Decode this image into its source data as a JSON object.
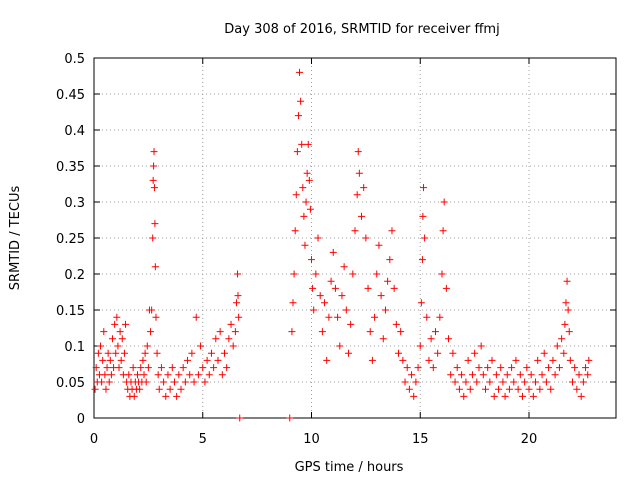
{
  "chart_data": {
    "type": "scatter",
    "title": "Day 308 of 2016, SRMTID for receiver ffmj",
    "xlabel": "GPS time / hours",
    "ylabel": "SRMTID / TECUs",
    "xlim": [
      0,
      24
    ],
    "ylim": [
      0,
      0.5
    ],
    "x_ticks": [
      "0",
      "5",
      "10",
      "15",
      "20"
    ],
    "y_ticks": [
      "0",
      "0.05",
      "0.1",
      "0.15",
      "0.2",
      "0.25",
      "0.3",
      "0.35",
      "0.4",
      "0.45",
      "0.5"
    ],
    "grid": true,
    "marker": "+",
    "color": "#ff0000",
    "series": [
      {
        "points": [
          [
            0.05,
            0.04
          ],
          [
            0.1,
            0.07
          ],
          [
            0.15,
            0.05
          ],
          [
            0.2,
            0.09
          ],
          [
            0.25,
            0.06
          ],
          [
            0.3,
            0.1
          ],
          [
            0.35,
            0.05
          ],
          [
            0.4,
            0.08
          ],
          [
            0.45,
            0.12
          ],
          [
            0.5,
            0.06
          ],
          [
            0.55,
            0.04
          ],
          [
            0.6,
            0.07
          ],
          [
            0.65,
            0.09
          ],
          [
            0.7,
            0.05
          ],
          [
            0.75,
            0.08
          ],
          [
            0.8,
            0.06
          ],
          [
            0.85,
            0.11
          ],
          [
            0.9,
            0.07
          ],
          [
            0.95,
            0.13
          ],
          [
            1.0,
            0.09
          ],
          [
            1.05,
            0.14
          ],
          [
            1.1,
            0.1
          ],
          [
            1.15,
            0.07
          ],
          [
            1.2,
            0.12
          ],
          [
            1.25,
            0.08
          ],
          [
            1.3,
            0.11
          ],
          [
            1.35,
            0.06
          ],
          [
            1.4,
            0.09
          ],
          [
            1.45,
            0.13
          ],
          [
            1.5,
            0.05
          ],
          [
            1.55,
            0.04
          ],
          [
            1.6,
            0.06
          ],
          [
            1.65,
            0.03
          ],
          [
            1.7,
            0.05
          ],
          [
            1.75,
            0.04
          ],
          [
            1.8,
            0.07
          ],
          [
            1.85,
            0.03
          ],
          [
            1.9,
            0.05
          ],
          [
            1.95,
            0.04
          ],
          [
            2.0,
            0.06
          ],
          [
            2.05,
            0.05
          ],
          [
            2.1,
            0.04
          ],
          [
            2.15,
            0.07
          ],
          [
            2.2,
            0.05
          ],
          [
            2.25,
            0.08
          ],
          [
            2.3,
            0.06
          ],
          [
            2.35,
            0.09
          ],
          [
            2.4,
            0.05
          ],
          [
            2.45,
            0.1
          ],
          [
            2.5,
            0.07
          ],
          [
            2.55,
            0.15
          ],
          [
            2.6,
            0.12
          ],
          [
            2.65,
            0.15
          ],
          [
            2.7,
            0.25
          ],
          [
            2.72,
            0.33
          ],
          [
            2.74,
            0.35
          ],
          [
            2.76,
            0.37
          ],
          [
            2.78,
            0.32
          ],
          [
            2.8,
            0.27
          ],
          [
            2.82,
            0.21
          ],
          [
            2.85,
            0.14
          ],
          [
            2.9,
            0.09
          ],
          [
            2.95,
            0.06
          ],
          [
            3.0,
            0.04
          ],
          [
            3.1,
            0.07
          ],
          [
            3.2,
            0.05
          ],
          [
            3.3,
            0.03
          ],
          [
            3.4,
            0.06
          ],
          [
            3.5,
            0.04
          ],
          [
            3.6,
            0.07
          ],
          [
            3.7,
            0.05
          ],
          [
            3.8,
            0.03
          ],
          [
            3.9,
            0.06
          ],
          [
            4.0,
            0.04
          ],
          [
            4.1,
            0.07
          ],
          [
            4.2,
            0.05
          ],
          [
            4.3,
            0.08
          ],
          [
            4.4,
            0.06
          ],
          [
            4.5,
            0.09
          ],
          [
            4.6,
            0.05
          ],
          [
            4.7,
            0.14
          ],
          [
            4.8,
            0.06
          ],
          [
            4.9,
            0.1
          ],
          [
            5.0,
            0.07
          ],
          [
            5.1,
            0.05
          ],
          [
            5.2,
            0.08
          ],
          [
            5.3,
            0.06
          ],
          [
            5.4,
            0.09
          ],
          [
            5.5,
            0.07
          ],
          [
            5.6,
            0.11
          ],
          [
            5.7,
            0.08
          ],
          [
            5.8,
            0.12
          ],
          [
            5.9,
            0.06
          ],
          [
            6.0,
            0.09
          ],
          [
            6.1,
            0.07
          ],
          [
            6.2,
            0.11
          ],
          [
            6.3,
            0.13
          ],
          [
            6.4,
            0.1
          ],
          [
            6.5,
            0.12
          ],
          [
            6.55,
            0.16
          ],
          [
            6.6,
            0.2
          ],
          [
            6.62,
            0.17
          ],
          [
            6.65,
            0.14
          ],
          [
            6.7,
            0.0
          ],
          [
            9.0,
            0.0
          ],
          [
            9.1,
            0.12
          ],
          [
            9.15,
            0.16
          ],
          [
            9.2,
            0.2
          ],
          [
            9.25,
            0.26
          ],
          [
            9.3,
            0.31
          ],
          [
            9.35,
            0.37
          ],
          [
            9.4,
            0.42
          ],
          [
            9.45,
            0.48
          ],
          [
            9.5,
            0.44
          ],
          [
            9.55,
            0.38
          ],
          [
            9.6,
            0.32
          ],
          [
            9.65,
            0.28
          ],
          [
            9.7,
            0.24
          ],
          [
            9.75,
            0.3
          ],
          [
            9.8,
            0.34
          ],
          [
            9.85,
            0.38
          ],
          [
            9.9,
            0.33
          ],
          [
            9.95,
            0.29
          ],
          [
            10.0,
            0.22
          ],
          [
            10.05,
            0.18
          ],
          [
            10.1,
            0.15
          ],
          [
            10.2,
            0.2
          ],
          [
            10.3,
            0.25
          ],
          [
            10.4,
            0.17
          ],
          [
            10.5,
            0.12
          ],
          [
            10.6,
            0.16
          ],
          [
            10.7,
            0.08
          ],
          [
            10.8,
            0.14
          ],
          [
            10.9,
            0.19
          ],
          [
            11.0,
            0.23
          ],
          [
            11.1,
            0.18
          ],
          [
            11.2,
            0.14
          ],
          [
            11.3,
            0.1
          ],
          [
            11.4,
            0.17
          ],
          [
            11.5,
            0.21
          ],
          [
            11.6,
            0.15
          ],
          [
            11.7,
            0.09
          ],
          [
            11.8,
            0.13
          ],
          [
            11.9,
            0.2
          ],
          [
            12.0,
            0.26
          ],
          [
            12.1,
            0.31
          ],
          [
            12.15,
            0.37
          ],
          [
            12.2,
            0.34
          ],
          [
            12.3,
            0.28
          ],
          [
            12.4,
            0.32
          ],
          [
            12.5,
            0.25
          ],
          [
            12.6,
            0.18
          ],
          [
            12.7,
            0.12
          ],
          [
            12.8,
            0.08
          ],
          [
            12.9,
            0.14
          ],
          [
            13.0,
            0.2
          ],
          [
            13.1,
            0.24
          ],
          [
            13.2,
            0.17
          ],
          [
            13.3,
            0.11
          ],
          [
            13.4,
            0.15
          ],
          [
            13.5,
            0.19
          ],
          [
            13.6,
            0.22
          ],
          [
            13.7,
            0.26
          ],
          [
            13.8,
            0.18
          ],
          [
            13.9,
            0.13
          ],
          [
            14.0,
            0.09
          ],
          [
            14.1,
            0.12
          ],
          [
            14.2,
            0.08
          ],
          [
            14.3,
            0.05
          ],
          [
            14.4,
            0.07
          ],
          [
            14.5,
            0.04
          ],
          [
            14.6,
            0.06
          ],
          [
            14.7,
            0.03
          ],
          [
            14.8,
            0.05
          ],
          [
            14.9,
            0.07
          ],
          [
            15.0,
            0.1
          ],
          [
            15.05,
            0.16
          ],
          [
            15.1,
            0.22
          ],
          [
            15.12,
            0.28
          ],
          [
            15.15,
            0.32
          ],
          [
            15.2,
            0.25
          ],
          [
            15.3,
            0.14
          ],
          [
            15.4,
            0.08
          ],
          [
            15.5,
            0.11
          ],
          [
            15.6,
            0.07
          ],
          [
            15.7,
            0.12
          ],
          [
            15.8,
            0.09
          ],
          [
            15.9,
            0.14
          ],
          [
            16.0,
            0.2
          ],
          [
            16.05,
            0.26
          ],
          [
            16.1,
            0.3
          ],
          [
            16.2,
            0.18
          ],
          [
            16.3,
            0.11
          ],
          [
            16.4,
            0.06
          ],
          [
            16.5,
            0.09
          ],
          [
            16.6,
            0.05
          ],
          [
            16.7,
            0.07
          ],
          [
            16.8,
            0.04
          ],
          [
            16.9,
            0.06
          ],
          [
            17.0,
            0.03
          ],
          [
            17.1,
            0.05
          ],
          [
            17.2,
            0.08
          ],
          [
            17.3,
            0.04
          ],
          [
            17.4,
            0.06
          ],
          [
            17.5,
            0.09
          ],
          [
            17.6,
            0.05
          ],
          [
            17.7,
            0.07
          ],
          [
            17.8,
            0.1
          ],
          [
            17.9,
            0.06
          ],
          [
            18.0,
            0.04
          ],
          [
            18.1,
            0.07
          ],
          [
            18.2,
            0.05
          ],
          [
            18.3,
            0.08
          ],
          [
            18.4,
            0.03
          ],
          [
            18.5,
            0.06
          ],
          [
            18.6,
            0.04
          ],
          [
            18.7,
            0.07
          ],
          [
            18.8,
            0.05
          ],
          [
            18.9,
            0.03
          ],
          [
            19.0,
            0.06
          ],
          [
            19.1,
            0.04
          ],
          [
            19.2,
            0.07
          ],
          [
            19.3,
            0.05
          ],
          [
            19.4,
            0.08
          ],
          [
            19.5,
            0.04
          ],
          [
            19.6,
            0.06
          ],
          [
            19.7,
            0.03
          ],
          [
            19.8,
            0.05
          ],
          [
            19.9,
            0.07
          ],
          [
            20.0,
            0.04
          ],
          [
            20.1,
            0.06
          ],
          [
            20.2,
            0.03
          ],
          [
            20.3,
            0.05
          ],
          [
            20.4,
            0.08
          ],
          [
            20.5,
            0.04
          ],
          [
            20.6,
            0.06
          ],
          [
            20.7,
            0.09
          ],
          [
            20.8,
            0.05
          ],
          [
            20.9,
            0.07
          ],
          [
            21.0,
            0.04
          ],
          [
            21.1,
            0.08
          ],
          [
            21.2,
            0.06
          ],
          [
            21.3,
            0.1
          ],
          [
            21.4,
            0.07
          ],
          [
            21.5,
            0.11
          ],
          [
            21.6,
            0.09
          ],
          [
            21.65,
            0.13
          ],
          [
            21.7,
            0.16
          ],
          [
            21.75,
            0.19
          ],
          [
            21.8,
            0.15
          ],
          [
            21.85,
            0.12
          ],
          [
            21.9,
            0.08
          ],
          [
            22.0,
            0.05
          ],
          [
            22.1,
            0.07
          ],
          [
            22.2,
            0.04
          ],
          [
            22.3,
            0.06
          ],
          [
            22.4,
            0.03
          ],
          [
            22.5,
            0.05
          ],
          [
            22.6,
            0.07
          ],
          [
            22.7,
            0.06
          ],
          [
            22.75,
            0.08
          ]
        ]
      }
    ]
  }
}
